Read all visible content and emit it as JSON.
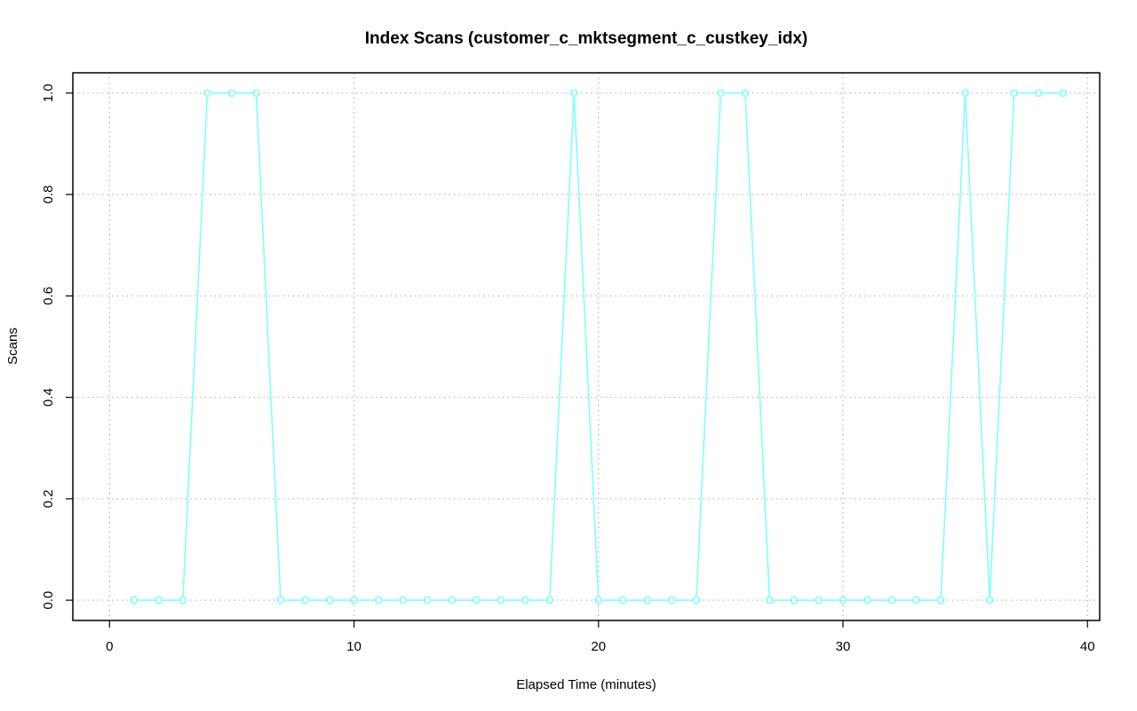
{
  "chart_data": {
    "type": "line",
    "title": "Index Scans (customer_c_mktsegment_c_custkey_idx)",
    "xlabel": "Elapsed Time (minutes)",
    "ylabel": "Scans",
    "xlim": [
      -1.5,
      40.5
    ],
    "ylim": [
      -0.04,
      1.04
    ],
    "x_ticks": [
      0,
      10,
      20,
      30,
      40
    ],
    "y_ticks": [
      0.0,
      0.2,
      0.4,
      0.6,
      0.8,
      1.0
    ],
    "x_tick_labels": [
      "0",
      "10",
      "20",
      "30",
      "40"
    ],
    "y_tick_labels": [
      "0.0",
      "0.2",
      "0.4",
      "0.6",
      "0.8",
      "1.0"
    ],
    "grid": true,
    "series": [
      {
        "color": "#7fffff",
        "marker": "open-circle",
        "x": [
          1,
          2,
          3,
          4,
          5,
          6,
          7,
          8,
          9,
          10,
          11,
          12,
          13,
          14,
          15,
          16,
          17,
          18,
          19,
          20,
          21,
          22,
          23,
          24,
          25,
          26,
          27,
          28,
          29,
          30,
          31,
          32,
          33,
          34,
          35,
          36,
          37,
          38,
          39
        ],
        "values": [
          0,
          0,
          0,
          1,
          1,
          1,
          0,
          0,
          0,
          0,
          0,
          0,
          0,
          0,
          0,
          0,
          0,
          0,
          1,
          0,
          0,
          0,
          0,
          0,
          1,
          1,
          0,
          0,
          0,
          0,
          0,
          0,
          0,
          0,
          1,
          0,
          1,
          1,
          1
        ]
      }
    ]
  }
}
